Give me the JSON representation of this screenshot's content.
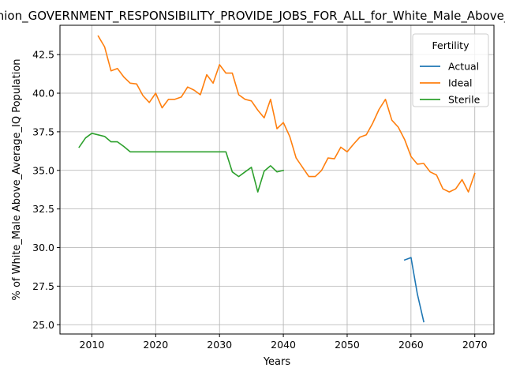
{
  "chart_data": {
    "type": "line",
    "title": "Opinion_GOVERNMENT_RESPONSIBILITY_PROVIDE_JOBS_FOR_ALL_for_White_Male_Above_Average_IQ",
    "xlabel": "Years",
    "ylabel": "% of White_Male Above_Average_IQ Population",
    "xlim": [
      2005,
      2073
    ],
    "ylim": [
      24.4,
      44.4
    ],
    "xticks": [
      2010,
      2020,
      2030,
      2040,
      2050,
      2060,
      2070
    ],
    "yticks": [
      25.0,
      27.5,
      30.0,
      32.5,
      35.0,
      37.5,
      40.0,
      42.5
    ],
    "xtick_labels": [
      "2010",
      "2020",
      "2030",
      "2040",
      "2050",
      "2060",
      "2070"
    ],
    "ytick_labels": [
      "25.0",
      "27.5",
      "30.0",
      "32.5",
      "35.0",
      "37.5",
      "40.0",
      "42.5"
    ],
    "grid": true,
    "legend": {
      "title": "Fertility",
      "placement": "top-right"
    },
    "series": [
      {
        "name": "Actual",
        "color": "#1f77b4",
        "x": [
          2059,
          2060,
          2061,
          2062
        ],
        "y": [
          29.2,
          29.35,
          27.0,
          25.2
        ]
      },
      {
        "name": "Ideal",
        "color": "#ff7f0e",
        "x": [
          2011,
          2012,
          2013,
          2014,
          2015,
          2016,
          2017,
          2018,
          2019,
          2020,
          2021,
          2022,
          2023,
          2024,
          2025,
          2026,
          2027,
          2028,
          2029,
          2030,
          2031,
          2032,
          2033,
          2034,
          2035,
          2036,
          2037,
          2038,
          2039,
          2040,
          2041,
          2042,
          2043,
          2044,
          2045,
          2046,
          2047,
          2048,
          2049,
          2050,
          2051,
          2052,
          2053,
          2054,
          2055,
          2056,
          2057,
          2058,
          2059,
          2060,
          2061,
          2062,
          2063,
          2064,
          2065,
          2066,
          2067,
          2068,
          2069,
          2070
        ],
        "y": [
          43.7,
          43.0,
          41.45,
          41.6,
          41.05,
          40.65,
          40.6,
          39.85,
          39.4,
          40.0,
          39.05,
          39.6,
          39.6,
          39.75,
          40.4,
          40.2,
          39.9,
          41.2,
          40.65,
          41.85,
          41.3,
          41.3,
          39.9,
          39.6,
          39.5,
          38.9,
          38.4,
          39.6,
          37.7,
          38.1,
          37.2,
          35.8,
          35.2,
          34.6,
          34.6,
          35.0,
          35.8,
          35.75,
          36.5,
          36.2,
          36.7,
          37.15,
          37.3,
          38.05,
          38.95,
          39.6,
          38.25,
          37.8,
          37.0,
          35.9,
          35.4,
          35.45,
          34.9,
          34.7,
          33.8,
          33.6,
          33.8,
          34.4,
          33.6,
          34.8
        ]
      },
      {
        "name": "Sterile",
        "color": "#2ca02c",
        "x": [
          2008,
          2009,
          2010,
          2011,
          2012,
          2013,
          2014,
          2015,
          2016,
          2017,
          2018,
          2019,
          2020,
          2021,
          2022,
          2023,
          2024,
          2025,
          2026,
          2027,
          2028,
          2029,
          2030,
          2031,
          2032,
          2033,
          2034,
          2035,
          2036,
          2037,
          2038,
          2039,
          2040
        ],
        "y": [
          36.5,
          37.1,
          37.4,
          37.3,
          37.2,
          36.85,
          36.85,
          36.55,
          36.2,
          36.2,
          36.2,
          36.2,
          36.2,
          36.2,
          36.2,
          36.2,
          36.2,
          36.2,
          36.2,
          36.2,
          36.2,
          36.2,
          36.2,
          36.2,
          34.9,
          34.6,
          34.9,
          35.2,
          33.6,
          34.95,
          35.3,
          34.9,
          35.0
        ]
      }
    ]
  }
}
